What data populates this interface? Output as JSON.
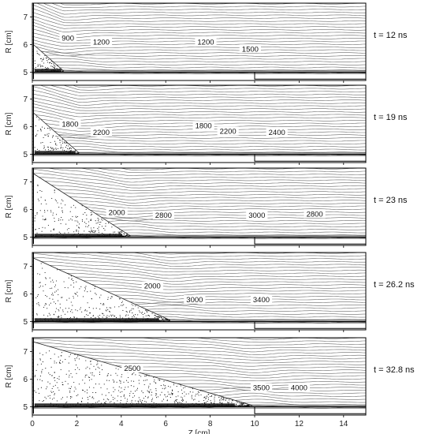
{
  "chart_data": {
    "type": "contour",
    "description_text_none": "",
    "shared_x": {
      "xlabel": "Z [cm]",
      "xlim": [
        0,
        15
      ],
      "ticks": [
        0,
        2,
        4,
        6,
        8,
        10,
        12,
        14
      ]
    },
    "shared_y": {
      "ylabel": "R [cm]",
      "ylim": [
        4.7,
        7.5
      ],
      "ticks": [
        5,
        6,
        7
      ]
    },
    "panels": [
      {
        "time_label": "t = 12 ns",
        "contour_labels": [
          {
            "text": "900",
            "z": 1.6,
            "r": 6.15
          },
          {
            "text": "1200",
            "z": 3.1,
            "r": 6.0
          },
          {
            "text": "1200",
            "z": 7.8,
            "r": 6.0
          },
          {
            "text": "1500",
            "z": 9.8,
            "r": 5.75
          }
        ],
        "plasma_extent_z": 1.4,
        "plasma_top_r": 6.0,
        "plasma_density": 0.35
      },
      {
        "time_label": "t = 19 ns",
        "contour_labels": [
          {
            "text": "1800",
            "z": 1.7,
            "r": 6.0
          },
          {
            "text": "2200",
            "z": 3.1,
            "r": 5.7
          },
          {
            "text": "1800",
            "z": 7.7,
            "r": 5.95
          },
          {
            "text": "2200",
            "z": 8.8,
            "r": 5.75
          },
          {
            "text": "2400",
            "z": 11.0,
            "r": 5.7
          }
        ],
        "plasma_extent_z": 2.1,
        "plasma_top_r": 6.5,
        "plasma_density": 0.45
      },
      {
        "time_label": "t = 23 ns",
        "contour_labels": [
          {
            "text": "2000",
            "z": 3.8,
            "r": 5.8
          },
          {
            "text": "2800",
            "z": 5.9,
            "r": 5.7
          },
          {
            "text": "3000",
            "z": 10.1,
            "r": 5.7
          },
          {
            "text": "2800",
            "z": 12.7,
            "r": 5.75
          }
        ],
        "plasma_extent_z": 4.4,
        "plasma_top_r": 7.3,
        "plasma_density": 0.55
      },
      {
        "time_label": "t = 26.2 ns",
        "contour_labels": [
          {
            "text": "2000",
            "z": 5.4,
            "r": 6.2
          },
          {
            "text": "3000",
            "z": 7.3,
            "r": 5.7
          },
          {
            "text": "3400",
            "z": 10.3,
            "r": 5.7
          }
        ],
        "plasma_extent_z": 6.2,
        "plasma_top_r": 7.3,
        "plasma_density": 0.65
      },
      {
        "time_label": "t = 32.8 ns",
        "contour_labels": [
          {
            "text": "2500",
            "z": 4.5,
            "r": 6.3
          },
          {
            "text": "3500",
            "z": 10.3,
            "r": 5.6
          },
          {
            "text": "4000",
            "z": 12.0,
            "r": 5.6
          }
        ],
        "plasma_extent_z": 9.9,
        "plasma_top_r": 7.35,
        "plasma_density": 0.8
      }
    ]
  }
}
